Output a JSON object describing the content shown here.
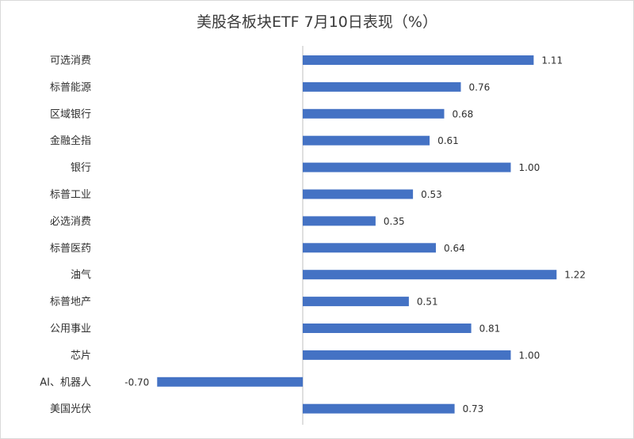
{
  "chart_data": {
    "type": "bar",
    "orientation": "horizontal",
    "title": "美股各板块ETF  7月10日表现（%）",
    "categories": [
      "可选消费",
      "标普能源",
      "区域银行",
      "金融全指",
      "银行",
      "标普工业",
      "必选消费",
      "标普医药",
      "油气",
      "标普地产",
      "公用事业",
      "芯片",
      "AI、机器人",
      "美国光伏"
    ],
    "values": [
      1.11,
      0.76,
      0.68,
      0.61,
      1.0,
      0.53,
      0.35,
      0.64,
      1.22,
      0.51,
      0.81,
      1.0,
      -0.7,
      0.73
    ],
    "value_labels": [
      "1.11",
      "0.76",
      "0.68",
      "0.61",
      "1.00",
      "0.53",
      "0.35",
      "0.64",
      "1.22",
      "0.51",
      "0.81",
      "1.00",
      "-0.70",
      "0.73"
    ],
    "bar_color": "#4472c4",
    "axis_color": "#bfbfbf",
    "xlim": [
      -0.7,
      1.22
    ],
    "grid": false,
    "legend": "none"
  }
}
